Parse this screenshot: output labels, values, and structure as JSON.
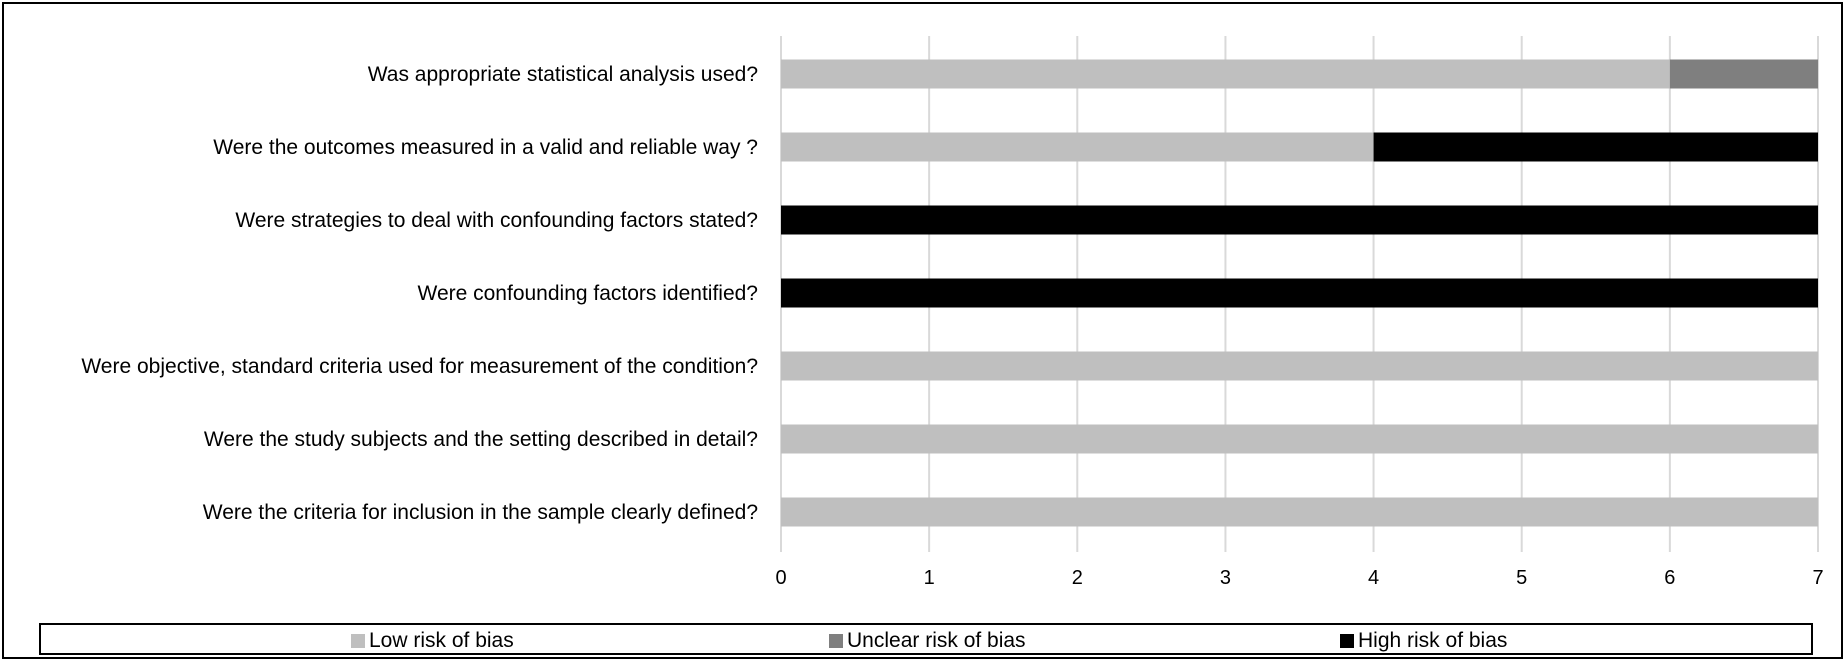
{
  "chart_data": {
    "type": "bar",
    "orientation": "horizontal",
    "stacked": true,
    "categories": [
      "Was appropriate statistical analysis used?",
      "Were the outcomes measured in a valid and reliable way ?",
      "Were strategies to deal with confounding factors stated?",
      "Were confounding factors identified?",
      "Were objective, standard criteria used for measurement of the condition?",
      "Were the study subjects and the setting described in detail?",
      "Were the criteria for inclusion in the sample clearly defined?"
    ],
    "series": [
      {
        "name": "Low risk of bias",
        "color": "#bfbfbf",
        "values": [
          6,
          4,
          0,
          0,
          7,
          7,
          7
        ]
      },
      {
        "name": "Unclear risk of bias",
        "color": "#7f7f7f",
        "values": [
          1,
          0,
          0,
          0,
          0,
          0,
          0
        ]
      },
      {
        "name": "High risk of bias",
        "color": "#000000",
        "values": [
          0,
          3,
          7,
          7,
          0,
          0,
          0
        ]
      }
    ],
    "xlim": [
      0,
      7
    ],
    "xticks": [
      "0",
      "1",
      "2",
      "3",
      "4",
      "5",
      "6",
      "7"
    ],
    "grid": true,
    "legend_position": "bottom",
    "title": "",
    "xlabel": "",
    "ylabel": ""
  }
}
